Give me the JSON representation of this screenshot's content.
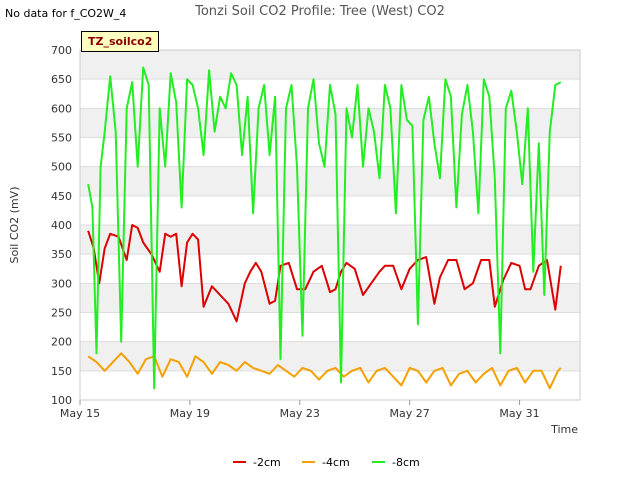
{
  "nodata_text": "No data for f_CO2W_4",
  "badge_label": "TZ_soilco2",
  "chart_data": {
    "type": "line",
    "title": "Tonzi Soil CO2 Profile: Tree (West) CO2",
    "xlabel": "Time",
    "ylabel": "Soil CO2 (mV)",
    "ylim": [
      100,
      700
    ],
    "yticks": [
      100,
      150,
      200,
      250,
      300,
      350,
      400,
      450,
      500,
      550,
      600,
      650,
      700
    ],
    "xlim": [
      15,
      33.2
    ],
    "xticks": [
      {
        "v": 15,
        "label": "May 15"
      },
      {
        "v": 19,
        "label": "May 19"
      },
      {
        "v": 23,
        "label": "May 23"
      },
      {
        "v": 27,
        "label": "May 27"
      },
      {
        "v": 31,
        "label": "May 31"
      }
    ],
    "grid": true,
    "legend_position": "bottom-center",
    "series": [
      {
        "name": "-2cm",
        "color": "#dd0000",
        "x": [
          15.3,
          15.5,
          15.7,
          15.9,
          16.1,
          16.4,
          16.7,
          16.9,
          17.1,
          17.3,
          17.6,
          17.9,
          18.1,
          18.3,
          18.5,
          18.7,
          18.9,
          19.1,
          19.3,
          19.5,
          19.8,
          20.1,
          20.4,
          20.7,
          21.0,
          21.2,
          21.4,
          21.6,
          21.9,
          22.1,
          22.3,
          22.6,
          22.9,
          23.2,
          23.5,
          23.8,
          24.1,
          24.3,
          24.5,
          24.7,
          25.0,
          25.3,
          25.6,
          25.9,
          26.1,
          26.4,
          26.7,
          27.0,
          27.3,
          27.6,
          27.9,
          28.1,
          28.4,
          28.7,
          29.0,
          29.3,
          29.6,
          29.9,
          30.1,
          30.4,
          30.7,
          31.0,
          31.2,
          31.4,
          31.7,
          32.0,
          32.3,
          32.5
        ],
        "y": [
          390,
          360,
          300,
          360,
          385,
          380,
          340,
          400,
          395,
          370,
          350,
          320,
          385,
          380,
          385,
          295,
          370,
          385,
          375,
          260,
          295,
          280,
          265,
          235,
          300,
          320,
          335,
          320,
          265,
          270,
          330,
          335,
          290,
          290,
          320,
          330,
          285,
          290,
          320,
          335,
          325,
          280,
          300,
          320,
          330,
          330,
          290,
          325,
          340,
          345,
          265,
          310,
          340,
          340,
          290,
          300,
          340,
          340,
          260,
          305,
          335,
          330,
          290,
          290,
          330,
          340,
          255,
          330
        ]
      },
      {
        "name": "-4cm",
        "color": "#f5a000",
        "x": [
          15.3,
          15.6,
          15.9,
          16.2,
          16.5,
          16.8,
          17.1,
          17.4,
          17.7,
          18.0,
          18.3,
          18.6,
          18.9,
          19.2,
          19.5,
          19.8,
          20.1,
          20.4,
          20.7,
          21.0,
          21.3,
          21.6,
          21.9,
          22.2,
          22.5,
          22.8,
          23.1,
          23.4,
          23.7,
          24.0,
          24.3,
          24.6,
          24.9,
          25.2,
          25.5,
          25.8,
          26.1,
          26.4,
          26.7,
          27.0,
          27.3,
          27.6,
          27.9,
          28.2,
          28.5,
          28.8,
          29.1,
          29.4,
          29.7,
          30.0,
          30.3,
          30.6,
          30.9,
          31.2,
          31.5,
          31.8,
          32.1,
          32.4,
          32.5
        ],
        "y": [
          175,
          165,
          150,
          165,
          180,
          165,
          145,
          170,
          175,
          140,
          170,
          165,
          140,
          175,
          165,
          145,
          165,
          160,
          150,
          165,
          155,
          150,
          145,
          160,
          150,
          140,
          155,
          150,
          135,
          150,
          155,
          140,
          150,
          155,
          130,
          150,
          155,
          140,
          125,
          155,
          150,
          130,
          150,
          155,
          125,
          145,
          150,
          130,
          145,
          155,
          125,
          150,
          155,
          130,
          150,
          150,
          120,
          150,
          155
        ]
      },
      {
        "name": "-8cm",
        "color": "#22ee22",
        "x": [
          15.3,
          15.45,
          15.6,
          15.75,
          15.9,
          16.1,
          16.3,
          16.5,
          16.7,
          16.9,
          17.1,
          17.3,
          17.5,
          17.7,
          17.9,
          18.1,
          18.3,
          18.5,
          18.7,
          18.9,
          19.1,
          19.3,
          19.5,
          19.7,
          19.9,
          20.1,
          20.3,
          20.5,
          20.7,
          20.9,
          21.1,
          21.3,
          21.5,
          21.7,
          21.9,
          22.1,
          22.3,
          22.5,
          22.7,
          22.9,
          23.1,
          23.3,
          23.5,
          23.7,
          23.9,
          24.1,
          24.3,
          24.5,
          24.7,
          24.9,
          25.1,
          25.3,
          25.5,
          25.7,
          25.9,
          26.1,
          26.3,
          26.5,
          26.7,
          26.9,
          27.1,
          27.3,
          27.5,
          27.7,
          27.9,
          28.1,
          28.3,
          28.5,
          28.7,
          28.9,
          29.1,
          29.3,
          29.5,
          29.7,
          29.9,
          30.1,
          30.3,
          30.5,
          30.7,
          30.9,
          31.1,
          31.3,
          31.5,
          31.7,
          31.9,
          32.1,
          32.3,
          32.5
        ],
        "y": [
          470,
          430,
          180,
          500,
          560,
          655,
          560,
          200,
          600,
          645,
          500,
          670,
          640,
          120,
          600,
          500,
          660,
          610,
          430,
          650,
          640,
          600,
          520,
          665,
          560,
          620,
          600,
          660,
          640,
          520,
          620,
          420,
          600,
          640,
          520,
          620,
          170,
          600,
          640,
          500,
          210,
          600,
          650,
          540,
          500,
          640,
          590,
          130,
          600,
          550,
          640,
          500,
          600,
          560,
          480,
          640,
          600,
          420,
          640,
          580,
          570,
          230,
          580,
          620,
          540,
          480,
          650,
          620,
          430,
          590,
          640,
          560,
          420,
          650,
          620,
          480,
          180,
          600,
          630,
          560,
          470,
          600,
          320,
          540,
          280,
          560,
          640,
          645
        ]
      }
    ]
  }
}
